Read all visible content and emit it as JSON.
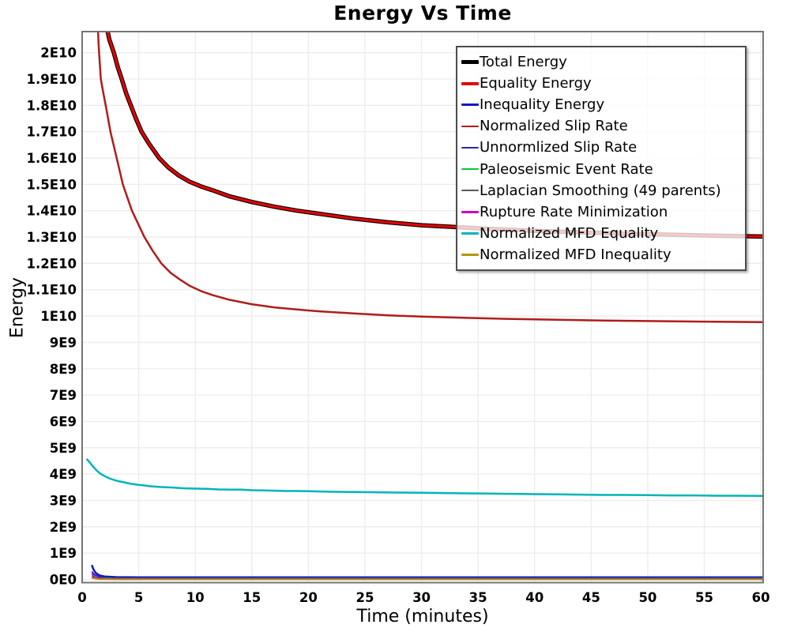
{
  "title": "Energy Vs Time",
  "chart_data": {
    "type": "line",
    "title": "Energy Vs Time",
    "xlabel": "Time (minutes)",
    "ylabel": "Energy",
    "xlim": [
      0,
      60.2
    ],
    "ylim_e9": [
      -0.12,
      20.8
    ],
    "grid": true,
    "legend_position": "top-right",
    "background_color": "#ffffff",
    "grid_color": "#ececec",
    "border_color": "#757575",
    "x_ticks": [
      0,
      5,
      10,
      15,
      20,
      25,
      30,
      35,
      40,
      45,
      50,
      55,
      60
    ],
    "y_tick_labels": [
      "0E0",
      "1E9",
      "2E9",
      "3E9",
      "4E9",
      "5E9",
      "6E9",
      "7E9",
      "8E9",
      "9E9",
      "1E10",
      "1.1E10",
      "1.2E10",
      "1.3E10",
      "1.4E10",
      "1.5E10",
      "1.6E10",
      "1.7E10",
      "1.8E10",
      "1.9E10",
      "2E10"
    ],
    "y_tick_values_e9": [
      0,
      1,
      2,
      3,
      4,
      5,
      6,
      7,
      8,
      9,
      10,
      11,
      12,
      13,
      14,
      15,
      16,
      17,
      18,
      19,
      20
    ],
    "series": [
      {
        "id": "total_energy",
        "name": "Total Energy",
        "color": "#000000",
        "stroke_width": 5.5,
        "swatch_height": 5,
        "points_e9": [
          [
            1.75,
            22.8
          ],
          [
            2.05,
            21.2
          ],
          [
            2.4,
            20.5
          ],
          [
            2.8,
            20.0
          ],
          [
            3.15,
            19.45
          ],
          [
            3.5,
            19.0
          ],
          [
            3.9,
            18.45
          ],
          [
            4.3,
            18.0
          ],
          [
            4.75,
            17.5
          ],
          [
            5.25,
            17.0
          ],
          [
            5.9,
            16.55
          ],
          [
            6.8,
            16.0
          ],
          [
            7.6,
            15.65
          ],
          [
            8.5,
            15.35
          ],
          [
            9.5,
            15.1
          ],
          [
            10.5,
            14.92
          ],
          [
            11.5,
            14.78
          ],
          [
            13,
            14.55
          ],
          [
            15,
            14.33
          ],
          [
            17,
            14.15
          ],
          [
            19,
            14.0
          ],
          [
            21,
            13.88
          ],
          [
            24,
            13.7
          ],
          [
            27,
            13.56
          ],
          [
            30,
            13.45
          ],
          [
            33,
            13.38
          ],
          [
            36,
            13.31
          ],
          [
            40,
            13.24
          ],
          [
            44,
            13.18
          ],
          [
            48,
            13.13
          ],
          [
            52,
            13.09
          ],
          [
            56,
            13.05
          ],
          [
            60.2,
            13.02
          ]
        ]
      },
      {
        "id": "equality_energy",
        "name": "Equality Energy",
        "color": "#e60000",
        "stroke_width": 3.2,
        "swatch_height": 4,
        "points_e9": [
          [
            1.75,
            22.8
          ],
          [
            2.05,
            21.2
          ],
          [
            2.4,
            20.5
          ],
          [
            2.8,
            20.0
          ],
          [
            3.15,
            19.45
          ],
          [
            3.5,
            19.0
          ],
          [
            3.9,
            18.45
          ],
          [
            4.3,
            18.0
          ],
          [
            4.75,
            17.5
          ],
          [
            5.25,
            17.0
          ],
          [
            5.9,
            16.55
          ],
          [
            6.8,
            16.0
          ],
          [
            7.6,
            15.65
          ],
          [
            8.5,
            15.35
          ],
          [
            9.5,
            15.1
          ],
          [
            10.5,
            14.92
          ],
          [
            11.5,
            14.78
          ],
          [
            13,
            14.55
          ],
          [
            15,
            14.33
          ],
          [
            17,
            14.15
          ],
          [
            19,
            14.0
          ],
          [
            21,
            13.88
          ],
          [
            24,
            13.7
          ],
          [
            27,
            13.56
          ],
          [
            30,
            13.45
          ],
          [
            33,
            13.38
          ],
          [
            36,
            13.31
          ],
          [
            40,
            13.24
          ],
          [
            44,
            13.18
          ],
          [
            48,
            13.13
          ],
          [
            52,
            13.09
          ],
          [
            56,
            13.05
          ],
          [
            60.2,
            13.02
          ]
        ]
      },
      {
        "id": "inequality_energy",
        "name": "Inequality Energy",
        "color": "#1414cc",
        "stroke_width": 2.5,
        "swatch_height": 3,
        "points_e9": [
          [
            0.85,
            0.55
          ],
          [
            1.0,
            0.38
          ],
          [
            1.2,
            0.25
          ],
          [
            1.5,
            0.16
          ],
          [
            2,
            0.11
          ],
          [
            3,
            0.09
          ],
          [
            5,
            0.08
          ],
          [
            10,
            0.08
          ],
          [
            20,
            0.08
          ],
          [
            40,
            0.08
          ],
          [
            60.2,
            0.08
          ]
        ]
      },
      {
        "id": "normalized_slip_rate",
        "name": "Normalized Slip Rate",
        "color": "#b01c1c",
        "stroke_width": 2.5,
        "swatch_height": 2.5,
        "points_e9": [
          [
            1.25,
            22.5
          ],
          [
            1.45,
            20.3
          ],
          [
            1.65,
            19.0
          ],
          [
            1.9,
            18.4
          ],
          [
            2.1,
            17.95
          ],
          [
            2.5,
            17.0
          ],
          [
            3.05,
            16.0
          ],
          [
            3.6,
            15.0
          ],
          [
            4.4,
            14.0
          ],
          [
            5.5,
            13.0
          ],
          [
            6.2,
            12.5
          ],
          [
            7.0,
            12.0
          ],
          [
            7.8,
            11.65
          ],
          [
            8.6,
            11.4
          ],
          [
            9.5,
            11.15
          ],
          [
            10.5,
            10.95
          ],
          [
            11.5,
            10.8
          ],
          [
            13,
            10.62
          ],
          [
            15,
            10.45
          ],
          [
            17,
            10.33
          ],
          [
            19,
            10.25
          ],
          [
            21,
            10.18
          ],
          [
            24,
            10.1
          ],
          [
            27,
            10.03
          ],
          [
            30,
            9.98
          ],
          [
            34,
            9.93
          ],
          [
            38,
            9.89
          ],
          [
            42,
            9.86
          ],
          [
            46,
            9.83
          ],
          [
            50,
            9.81
          ],
          [
            55,
            9.79
          ],
          [
            60.2,
            9.77
          ]
        ]
      },
      {
        "id": "unnormalized_slip_rate",
        "name": "Unnormlized Slip Rate",
        "color": "#2a2a99",
        "stroke_width": 2,
        "swatch_height": 2.5,
        "points_e9": [
          [
            0.85,
            0.3
          ],
          [
            1.1,
            0.18
          ],
          [
            1.5,
            0.1
          ],
          [
            2,
            0.07
          ],
          [
            4,
            0.05
          ],
          [
            10,
            0.05
          ],
          [
            30,
            0.05
          ],
          [
            60.2,
            0.05
          ]
        ]
      },
      {
        "id": "paleoseismic_event_rate",
        "name": "Paleoseismic Event Rate",
        "color": "#00c83c",
        "stroke_width": 2,
        "swatch_height": 2.5,
        "points_e9": [
          [
            0.85,
            0.12
          ],
          [
            1.5,
            0.05
          ],
          [
            3,
            0.03
          ],
          [
            10,
            0.03
          ],
          [
            60.2,
            0.03
          ]
        ]
      },
      {
        "id": "laplacian_smoothing",
        "name": "Laplacian Smoothing (49 parents)",
        "color": "#595959",
        "stroke_width": 2,
        "swatch_height": 2.5,
        "points_e9": [
          [
            0.85,
            0.08
          ],
          [
            2,
            0.03
          ],
          [
            10,
            0.02
          ],
          [
            60.2,
            0.02
          ]
        ]
      },
      {
        "id": "rupture_rate_minimization",
        "name": "Rupture Rate Minimization",
        "color": "#cc00cc",
        "stroke_width": 2,
        "swatch_height": 2.5,
        "points_e9": [
          [
            0.85,
            0.22
          ],
          [
            1.05,
            0.12
          ],
          [
            1.3,
            0.05
          ],
          [
            1.7,
            0.02
          ],
          [
            3,
            0.01
          ],
          [
            60.2,
            0.01
          ]
        ]
      },
      {
        "id": "normalized_mfd_equality",
        "name": "Normalized MFD Equality",
        "color": "#00b5b8",
        "stroke_width": 2.5,
        "swatch_height": 2.5,
        "points_e9": [
          [
            0.4,
            4.58
          ],
          [
            0.7,
            4.42
          ],
          [
            1.0,
            4.27
          ],
          [
            1.3,
            4.13
          ],
          [
            1.6,
            4.02
          ],
          [
            2.0,
            3.92
          ],
          [
            2.4,
            3.84
          ],
          [
            2.8,
            3.78
          ],
          [
            3.2,
            3.73
          ],
          [
            3.6,
            3.7
          ],
          [
            4.0,
            3.66
          ],
          [
            4.5,
            3.62
          ],
          [
            5.0,
            3.59
          ],
          [
            5.5,
            3.57
          ],
          [
            6.0,
            3.54
          ],
          [
            7.0,
            3.51
          ],
          [
            8.0,
            3.49
          ],
          [
            9.0,
            3.46
          ],
          [
            10,
            3.45
          ],
          [
            11,
            3.44
          ],
          [
            12,
            3.42
          ],
          [
            13,
            3.41
          ],
          [
            14,
            3.41
          ],
          [
            15,
            3.39
          ],
          [
            16,
            3.38
          ],
          [
            17,
            3.37
          ],
          [
            18,
            3.36
          ],
          [
            19,
            3.36
          ],
          [
            20,
            3.35
          ],
          [
            22,
            3.33
          ],
          [
            24,
            3.32
          ],
          [
            26,
            3.31
          ],
          [
            28,
            3.3
          ],
          [
            30,
            3.29
          ],
          [
            32,
            3.28
          ],
          [
            34,
            3.27
          ],
          [
            36,
            3.26
          ],
          [
            38,
            3.25
          ],
          [
            40,
            3.24
          ],
          [
            42,
            3.23
          ],
          [
            44,
            3.22
          ],
          [
            46,
            3.21
          ],
          [
            48,
            3.21
          ],
          [
            50,
            3.2
          ],
          [
            52,
            3.19
          ],
          [
            54,
            3.19
          ],
          [
            56,
            3.18
          ],
          [
            58,
            3.18
          ],
          [
            60.2,
            3.17
          ]
        ]
      },
      {
        "id": "normalized_mfd_inequality",
        "name": "Normalized MFD Inequality",
        "color": "#b5950a",
        "stroke_width": 2,
        "swatch_height": 2.5,
        "points_e9": [
          [
            0.85,
            0.05
          ],
          [
            1.5,
            0.01
          ],
          [
            3,
            0.0
          ],
          [
            60.2,
            0.0
          ]
        ]
      }
    ]
  }
}
